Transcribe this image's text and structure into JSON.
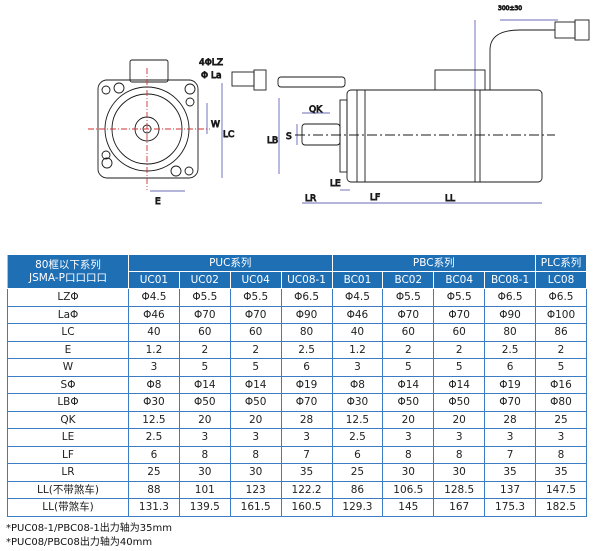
{
  "drawing": {
    "labels": {
      "lz": "4ΦLZ",
      "la": "Φ La",
      "w": "W",
      "lc": "LC",
      "e": "E",
      "qk": "QK",
      "lb": "LB",
      "s": "S",
      "le": "LE",
      "lr": "LR",
      "lf": "LF",
      "ll": "LL",
      "cable": "300±30"
    },
    "line_color": "#1a1a1a",
    "dim_color": "#3a3aa0",
    "center_color": "#d23030"
  },
  "table": {
    "corner": [
      "80框以下系列",
      "JSMA-P口口口口"
    ],
    "groups": [
      "PUC系列",
      "PBC系列",
      "PLC系列"
    ],
    "models": [
      "UC01",
      "UC02",
      "UC04",
      "UC08-1",
      "BC01",
      "BC02",
      "BC04",
      "BC08-1",
      "LC08"
    ],
    "header_color": "#1f6fb5",
    "rows": [
      {
        "label": "LZΦ",
        "values": [
          "Φ4.5",
          "Φ5.5",
          "Φ5.5",
          "Φ6.5",
          "Φ4.5",
          "Φ5.5",
          "Φ5.5",
          "Φ6.5",
          "Φ6.5"
        ]
      },
      {
        "label": "LaΦ",
        "values": [
          "Φ46",
          "Φ70",
          "Φ70",
          "Φ90",
          "Φ46",
          "Φ70",
          "Φ70",
          "Φ90",
          "Φ100"
        ]
      },
      {
        "label": "LC",
        "values": [
          "40",
          "60",
          "60",
          "80",
          "40",
          "60",
          "60",
          "80",
          "86"
        ]
      },
      {
        "label": "E",
        "values": [
          "1.2",
          "2",
          "2",
          "2.5",
          "1.2",
          "2",
          "2",
          "2.5",
          "2"
        ]
      },
      {
        "label": "W",
        "values": [
          "3",
          "5",
          "5",
          "6",
          "3",
          "5",
          "5",
          "6",
          "5"
        ]
      },
      {
        "label": "SΦ",
        "values": [
          "Φ8",
          "Φ14",
          "Φ14",
          "Φ19",
          "Φ8",
          "Φ14",
          "Φ14",
          "Φ19",
          "Φ16"
        ]
      },
      {
        "label": "LBΦ",
        "values": [
          "Φ30",
          "Φ50",
          "Φ50",
          "Φ70",
          "Φ30",
          "Φ50",
          "Φ50",
          "Φ70",
          "Φ80"
        ]
      },
      {
        "label": "QK",
        "values": [
          "12.5",
          "20",
          "20",
          "28",
          "12.5",
          "20",
          "20",
          "28",
          "25"
        ]
      },
      {
        "label": "LE",
        "values": [
          "2.5",
          "3",
          "3",
          "3",
          "2.5",
          "3",
          "3",
          "3",
          "3"
        ]
      },
      {
        "label": "LF",
        "values": [
          "6",
          "8",
          "8",
          "7",
          "6",
          "8",
          "8",
          "7",
          "8"
        ]
      },
      {
        "label": "LR",
        "values": [
          "25",
          "30",
          "30",
          "35",
          "25",
          "30",
          "30",
          "35",
          "35"
        ]
      },
      {
        "label": "LL(不带煞车)",
        "values": [
          "88",
          "101",
          "123",
          "122.2",
          "86",
          "106.5",
          "128.5",
          "137",
          "147.5"
        ]
      },
      {
        "label": "LL(带煞车)",
        "values": [
          "131.3",
          "139.5",
          "161.5",
          "160.5",
          "129.3",
          "145",
          "167",
          "175.3",
          "182.5"
        ]
      }
    ]
  },
  "notes": [
    "*PUC08-1/PBC08-1出力轴为35mm",
    "*PUC08/PBC08出力轴为40mm"
  ]
}
